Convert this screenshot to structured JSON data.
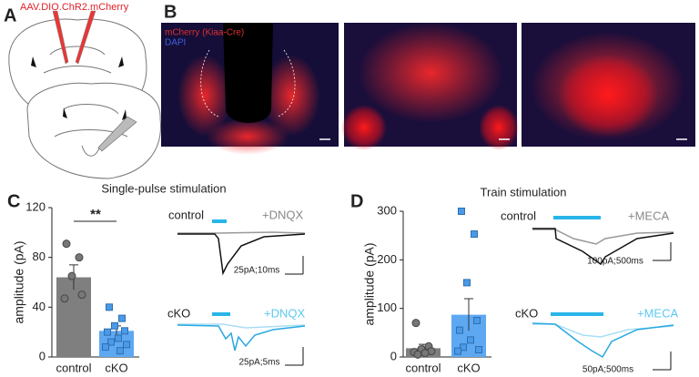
{
  "panel_labels": [
    "A",
    "B",
    "C",
    "D"
  ],
  "panel_a": {
    "label": "AAV.DIO.ChR2.mCherry"
  },
  "panel_b": {
    "labels": [
      "mCherry (Kiaa-Cre)",
      "DAPI"
    ]
  },
  "chart_data": [
    {
      "type": "bar",
      "title": "Single-pulse stimulation",
      "y_label": "amplitude (pA)",
      "categories": [
        "control",
        "cKO"
      ],
      "values": [
        64,
        21
      ],
      "errors": [
        10,
        4
      ],
      "colors": [
        "#7f7f7f",
        "#5ea8f2"
      ],
      "points": [
        [
          91,
          80,
          65,
          50,
          47
        ],
        [
          40,
          31,
          25,
          21,
          20,
          15,
          12,
          10,
          8,
          5
        ]
      ],
      "ylim": [
        0,
        120
      ],
      "yticks": [
        0,
        40,
        80,
        120
      ],
      "annotations": [
        "**"
      ],
      "traces": [
        {
          "condition": "control",
          "drug": "+DNQX",
          "scale": "25pA;10ms"
        },
        {
          "condition": "cKO",
          "drug": "+DNQX",
          "scale": "25pA;5ms"
        }
      ]
    },
    {
      "type": "bar",
      "title": "Train stimulation",
      "y_label": "amplitude (pA)",
      "categories": [
        "control",
        "cKO"
      ],
      "values": [
        18,
        87
      ],
      "errors": [
        8,
        33
      ],
      "colors": [
        "#7f7f7f",
        "#5ea8f2"
      ],
      "points": [
        [
          70,
          22,
          16,
          12,
          10,
          8,
          5
        ],
        [
          300,
          253,
          153,
          75,
          55,
          35,
          20,
          15,
          12
        ]
      ],
      "ylim": [
        0,
        300
      ],
      "yticks": [
        0,
        100,
        200,
        300
      ],
      "traces": [
        {
          "condition": "control",
          "drug": "+MECA",
          "scale": "100pA;500ms"
        },
        {
          "condition": "cKO",
          "drug": "+MECA",
          "scale": "50pA;500ms"
        }
      ]
    }
  ]
}
